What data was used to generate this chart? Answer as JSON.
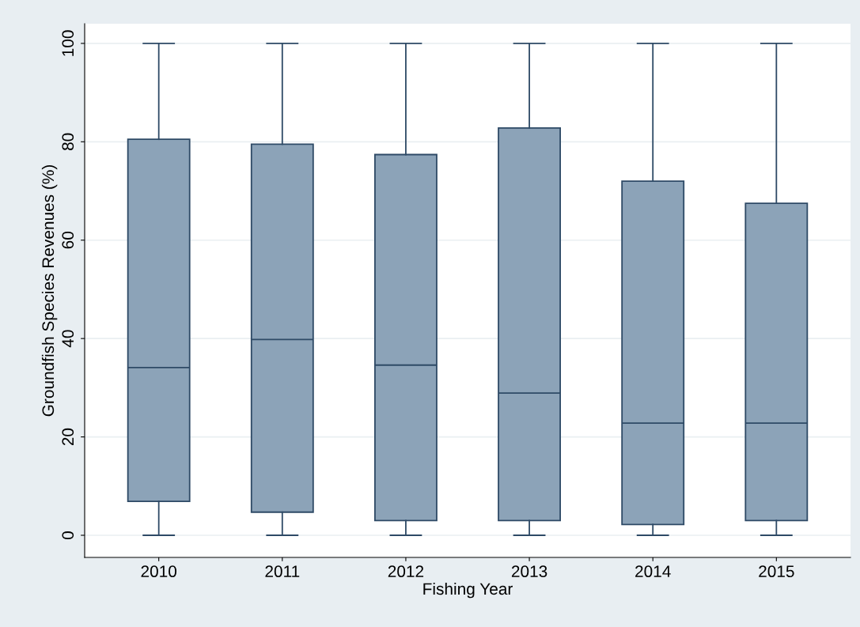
{
  "chart_data": {
    "type": "box",
    "xlabel": "Fishing Year",
    "ylabel": "Groundfish Species Revenues (%)",
    "categories": [
      "2010",
      "2011",
      "2012",
      "2013",
      "2014",
      "2015"
    ],
    "color": "#8ca3b8",
    "boxes": [
      {
        "low": 0,
        "q1": 6.9,
        "median": 34.1,
        "q3": 80.5,
        "high": 100
      },
      {
        "low": 0,
        "q1": 4.7,
        "median": 39.8,
        "q3": 79.5,
        "high": 100
      },
      {
        "low": 0,
        "q1": 3.0,
        "median": 34.6,
        "q3": 77.4,
        "high": 100
      },
      {
        "low": 0,
        "q1": 3.0,
        "median": 28.9,
        "q3": 82.8,
        "high": 100
      },
      {
        "low": 0,
        "q1": 2.2,
        "median": 22.8,
        "q3": 72.0,
        "high": 100
      },
      {
        "low": 0,
        "q1": 3.0,
        "median": 22.8,
        "q3": 67.5,
        "high": 100
      }
    ],
    "ylim": [
      -4.5,
      104
    ],
    "yticks": [
      0,
      20,
      40,
      60,
      80,
      100
    ],
    "grid": "y",
    "legend": false
  }
}
